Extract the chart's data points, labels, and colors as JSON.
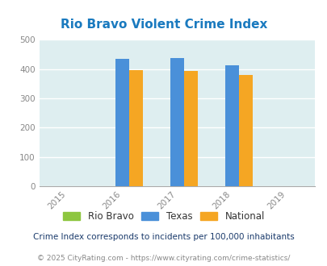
{
  "title": "Rio Bravo Violent Crime Index",
  "title_color": "#1a7abf",
  "years": [
    2016,
    2017,
    2018
  ],
  "x_ticks": [
    2015,
    2016,
    2017,
    2018,
    2019
  ],
  "rio_bravo": [
    0,
    0,
    0
  ],
  "texas": [
    435,
    438,
    412
  ],
  "national": [
    398,
    395,
    381
  ],
  "rio_bravo_color": "#8dc63f",
  "texas_color": "#4a90d9",
  "national_color": "#f5a623",
  "ylim": [
    0,
    500
  ],
  "yticks": [
    0,
    100,
    200,
    300,
    400,
    500
  ],
  "bg_color": "#deeef0",
  "legend_labels": [
    "Rio Bravo",
    "Texas",
    "National"
  ],
  "footnote1": "Crime Index corresponds to incidents per 100,000 inhabitants",
  "footnote2": "© 2025 CityRating.com - https://www.cityrating.com/crime-statistics/",
  "bar_width": 0.25,
  "figsize": [
    4.06,
    3.3
  ],
  "dpi": 100
}
